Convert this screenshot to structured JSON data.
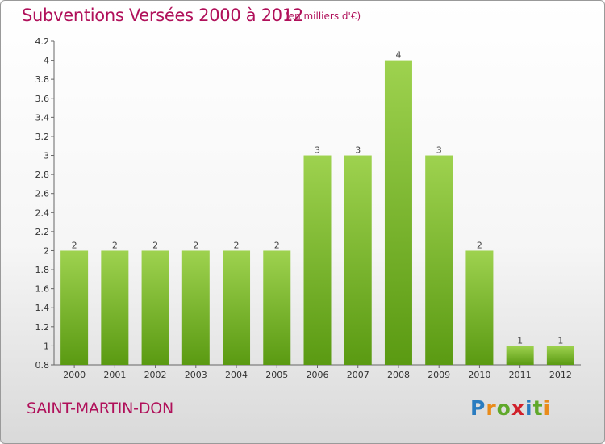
{
  "title": "Subventions Versées 2000 à 2012",
  "unit_note": "(en milliers d'€)",
  "commune": "SAINT-MARTIN-DON",
  "logo": {
    "text": "Proxiti",
    "letters": [
      "P",
      "r",
      "o",
      "x",
      "i",
      "t",
      "i"
    ]
  },
  "colors": {
    "bar_top": "#9ed24f",
    "bar_bottom": "#5a9a12",
    "title": "#b0105a"
  },
  "chart_data": {
    "type": "bar",
    "title": "Subventions Versées 2000 à 2012",
    "subtitle": "(en milliers d'€)",
    "categories": [
      "2000",
      "2001",
      "2002",
      "2003",
      "2004",
      "2005",
      "2006",
      "2007",
      "2008",
      "2009",
      "2010",
      "2011",
      "2012"
    ],
    "values": [
      2,
      2,
      2,
      2,
      2,
      2,
      3,
      3,
      4,
      3,
      2,
      1,
      1
    ],
    "data_labels": [
      "2",
      "2",
      "2",
      "2",
      "2",
      "2",
      "3",
      "3",
      "4",
      "3",
      "2",
      "1",
      "1"
    ],
    "ylim": [
      0.8,
      4.2
    ],
    "yticks": [
      0.8,
      1,
      1.2,
      1.4,
      1.6,
      1.8,
      2,
      2.2,
      2.4,
      2.6,
      2.8,
      3,
      3.2,
      3.4,
      3.6,
      3.8,
      4,
      4.2
    ],
    "ytick_labels": [
      "0.8",
      "1",
      "1.2",
      "1.4",
      "1.6",
      "1.8",
      "2",
      "2.2",
      "2.4",
      "2.6",
      "2.8",
      "3",
      "3.2",
      "3.4",
      "3.6",
      "3.8",
      "4",
      "4.2"
    ],
    "grid": false,
    "legend": "none"
  }
}
